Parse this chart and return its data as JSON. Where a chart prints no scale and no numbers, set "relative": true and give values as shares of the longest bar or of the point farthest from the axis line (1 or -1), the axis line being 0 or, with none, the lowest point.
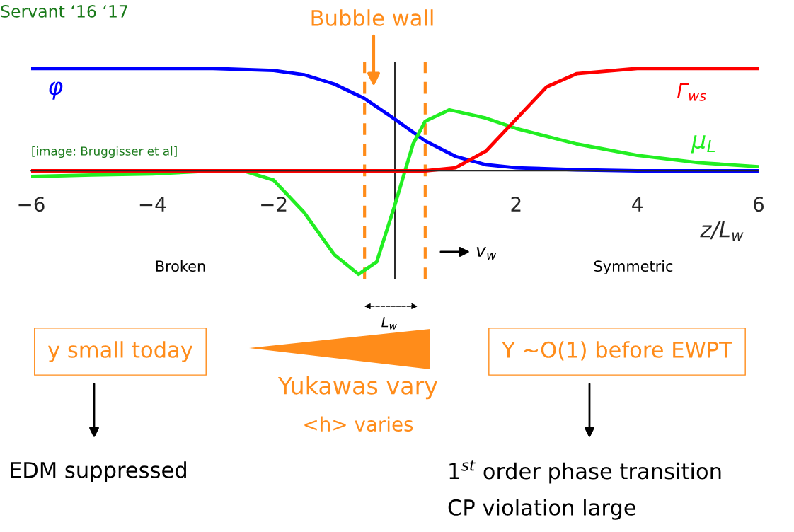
{
  "chart_data": {
    "type": "line",
    "relative": true,
    "xlabel": "z/L$_{w}$",
    "xlim": [
      -6,
      6
    ],
    "xticks": [
      -6,
      -4,
      -2,
      2,
      4,
      6
    ],
    "tick_labels": "x",
    "series": [
      {
        "name": "φ",
        "color": "#0000ff",
        "x": [
          -6,
          -4,
          -3,
          -2,
          -1.5,
          -1,
          -0.5,
          0,
          0.5,
          1,
          1.5,
          2,
          3,
          4,
          6
        ],
        "values": [
          0.99,
          0.99,
          0.99,
          0.97,
          0.93,
          0.84,
          0.7,
          0.5,
          0.29,
          0.14,
          0.06,
          0.03,
          0.01,
          0,
          0
        ]
      },
      {
        "name": "μ$_{L}$",
        "color": "#22ee22",
        "x": [
          -6,
          -5,
          -4,
          -3,
          -2.5,
          -2,
          -1.5,
          -1,
          -0.6,
          -0.3,
          0,
          0.3,
          0.5,
          0.9,
          1.5,
          2,
          3,
          4,
          5,
          6
        ],
        "values": [
          -0.055,
          -0.04,
          -0.03,
          0,
          0,
          -0.09,
          -0.4,
          -0.81,
          -1,
          -0.88,
          -0.33,
          0.26,
          0.48,
          0.59,
          0.51,
          0.41,
          0.26,
          0.15,
          0.08,
          0.04
        ]
      },
      {
        "name": "Γ$_{ws}$",
        "color": "#ff0000",
        "x": [
          -6,
          -2,
          0,
          0.5,
          1,
          1.5,
          2,
          2.5,
          3,
          4,
          6
        ],
        "values": [
          0,
          0,
          0,
          0,
          0.03,
          0.19,
          0.5,
          0.81,
          0.94,
          0.99,
          0.99
        ]
      }
    ],
    "ref_lines": [
      {
        "axis": "x",
        "value": 0,
        "color": "#000000",
        "line_style": "solid"
      },
      {
        "axis": "x",
        "value": -0.5,
        "color": "#ff8c1a",
        "line_style": "dashed"
      },
      {
        "axis": "x",
        "value": 0.5,
        "color": "#ff8c1a",
        "line_style": "dashed"
      }
    ],
    "annotations": [
      "Servant ‘16 ‘17",
      "Bubble wall",
      "[image: Bruggisser et al]",
      "Broken",
      "Symmetric",
      "v$_{w}$",
      "L$_{w}$",
      "y small today",
      "Y ~O(1) before EWPT",
      "Yukawas vary",
      "<h> varies",
      "EDM suppressed",
      "1$^{st}$ order phase transition",
      "CP violation large"
    ]
  }
}
